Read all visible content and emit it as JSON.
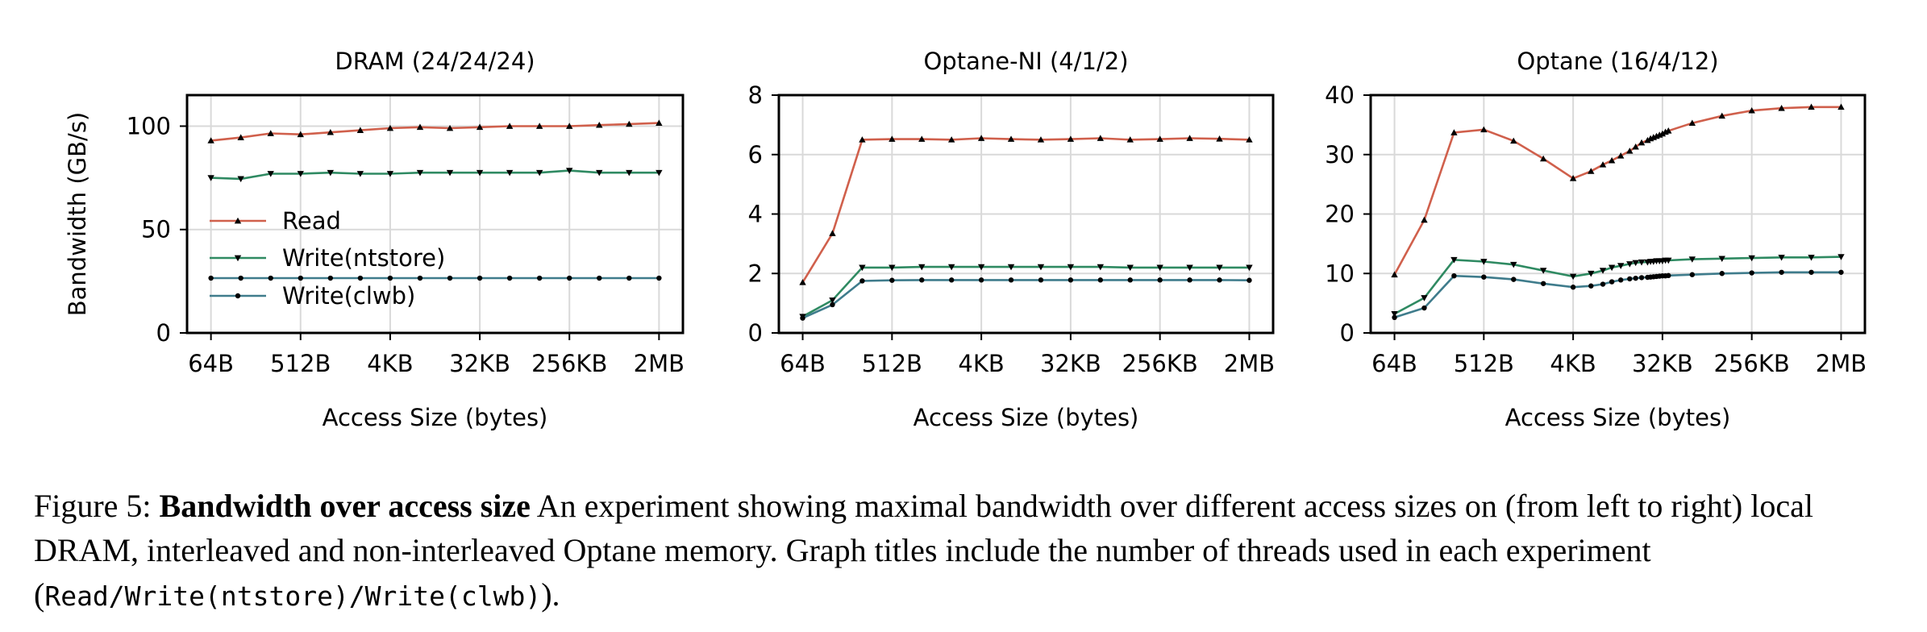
{
  "chart_data": [
    {
      "type": "line",
      "title": "DRAM (24/24/24)",
      "xlabel": "Access Size (bytes)",
      "ylabel": "Bandwidth (GB/s)",
      "ylim": [
        0,
        115
      ],
      "yticks": [
        0,
        50,
        100
      ],
      "x_tick_labels": [
        "64B",
        "512B",
        "4KB",
        "32KB",
        "256KB",
        "2MB"
      ],
      "x_tick_log2": [
        6,
        9,
        12,
        15,
        18,
        21
      ],
      "xlim_log2": [
        5.2,
        21.8
      ],
      "grid": true,
      "legend": {
        "position": "center-left",
        "entries": [
          "Read",
          "Write(ntstore)",
          "Write(clwb)"
        ]
      },
      "series": [
        {
          "name": "Read",
          "color": "#d0604c",
          "marker": "triangle-up",
          "x_log2": [
            6,
            7,
            8,
            9,
            10,
            11,
            12,
            13,
            14,
            15,
            16,
            17,
            18,
            19,
            20,
            21
          ],
          "values": [
            93,
            94.5,
            96.5,
            96,
            97,
            98,
            99,
            99.5,
            99,
            99.5,
            100,
            100,
            100,
            100.5,
            101,
            101.5
          ]
        },
        {
          "name": "Write(ntstore)",
          "color": "#2f8a62",
          "marker": "triangle-down",
          "x_log2": [
            6,
            7,
            8,
            9,
            10,
            11,
            12,
            13,
            14,
            15,
            16,
            17,
            18,
            19,
            20,
            21
          ],
          "values": [
            75,
            74.5,
            77,
            77,
            77.5,
            77,
            77,
            77.5,
            77.5,
            77.5,
            77.5,
            77.5,
            78.5,
            77.5,
            77.5,
            77.5
          ]
        },
        {
          "name": "Write(clwb)",
          "color": "#3f7c8c",
          "marker": "circle",
          "x_log2": [
            6,
            7,
            8,
            9,
            10,
            11,
            12,
            13,
            14,
            15,
            16,
            17,
            18,
            19,
            20,
            21
          ],
          "values": [
            26.5,
            26.5,
            26.5,
            26.5,
            26.5,
            26.5,
            26.5,
            26.5,
            26.5,
            26.5,
            26.5,
            26.5,
            26.5,
            26.5,
            26.5,
            26.5
          ]
        }
      ]
    },
    {
      "type": "line",
      "title": "Optane-NI (4/1/2)",
      "xlabel": "Access Size (bytes)",
      "ylabel": "",
      "ylim": [
        0,
        8
      ],
      "yticks": [
        0,
        2,
        4,
        6,
        8
      ],
      "x_tick_labels": [
        "64B",
        "512B",
        "4KB",
        "32KB",
        "256KB",
        "2MB"
      ],
      "x_tick_log2": [
        6,
        9,
        12,
        15,
        18,
        21
      ],
      "xlim_log2": [
        5.2,
        21.8
      ],
      "grid": true,
      "series": [
        {
          "name": "Read",
          "color": "#d0604c",
          "marker": "triangle-up",
          "x_log2": [
            6,
            7,
            8,
            9,
            10,
            11,
            12,
            13,
            14,
            15,
            16,
            17,
            18,
            19,
            20,
            21
          ],
          "values": [
            1.7,
            3.35,
            6.5,
            6.52,
            6.52,
            6.5,
            6.55,
            6.52,
            6.5,
            6.52,
            6.55,
            6.5,
            6.52,
            6.55,
            6.53,
            6.5
          ]
        },
        {
          "name": "Write(ntstore)",
          "color": "#2f8a62",
          "marker": "triangle-down",
          "x_log2": [
            6,
            7,
            8,
            9,
            10,
            11,
            12,
            13,
            14,
            15,
            16,
            17,
            18,
            19,
            20,
            21
          ],
          "values": [
            0.55,
            1.1,
            2.2,
            2.2,
            2.22,
            2.22,
            2.22,
            2.22,
            2.22,
            2.22,
            2.22,
            2.2,
            2.2,
            2.2,
            2.2,
            2.2
          ]
        },
        {
          "name": "Write(clwb)",
          "color": "#3f7c8c",
          "marker": "circle",
          "x_log2": [
            6,
            7,
            8,
            9,
            10,
            11,
            12,
            13,
            14,
            15,
            16,
            17,
            18,
            19,
            20,
            21
          ],
          "values": [
            0.5,
            0.95,
            1.75,
            1.77,
            1.78,
            1.78,
            1.78,
            1.78,
            1.78,
            1.78,
            1.78,
            1.78,
            1.78,
            1.78,
            1.78,
            1.77
          ]
        }
      ]
    },
    {
      "type": "line",
      "title": "Optane (16/4/12)",
      "xlabel": "Access Size (bytes)",
      "ylabel": "",
      "ylim": [
        0,
        40
      ],
      "yticks": [
        0,
        10,
        20,
        30,
        40
      ],
      "x_tick_labels": [
        "64B",
        "512B",
        "4KB",
        "32KB",
        "256KB",
        "2MB"
      ],
      "x_tick_log2": [
        6,
        9,
        12,
        15,
        18,
        21
      ],
      "xlim_log2": [
        5.2,
        21.8
      ],
      "grid": true,
      "series": [
        {
          "name": "Read",
          "color": "#d0604c",
          "marker": "triangle-up",
          "x_log2": [
            6,
            7,
            8,
            9,
            10,
            11,
            12,
            12.6,
            13,
            13.3,
            13.6,
            13.9,
            14.1,
            14.3,
            14.5,
            14.6,
            14.7,
            14.8,
            14.9,
            15,
            15.1,
            15.2,
            16,
            17,
            18,
            19,
            20,
            21
          ],
          "values": [
            9.8,
            19,
            33.7,
            34.2,
            32.3,
            29.3,
            26,
            27.2,
            28.3,
            29,
            29.8,
            30.6,
            31.3,
            32,
            32.4,
            32.7,
            32.9,
            33.1,
            33.3,
            33.5,
            33.8,
            34,
            35.3,
            36.5,
            37.4,
            37.8,
            38,
            38
          ]
        },
        {
          "name": "Write(ntstore)",
          "color": "#2f8a62",
          "marker": "triangle-down",
          "x_log2": [
            6,
            7,
            8,
            9,
            10,
            11,
            12,
            12.6,
            13,
            13.3,
            13.6,
            13.9,
            14.1,
            14.3,
            14.5,
            14.6,
            14.7,
            14.8,
            14.9,
            15,
            15.1,
            15.2,
            16,
            17,
            18,
            19,
            20,
            21
          ],
          "values": [
            3.2,
            5.9,
            12.3,
            12,
            11.5,
            10.5,
            9.5,
            10,
            10.5,
            11,
            11.3,
            11.6,
            11.8,
            11.9,
            11.9,
            12,
            12,
            12.1,
            12.1,
            12.1,
            12.2,
            12.2,
            12.4,
            12.5,
            12.6,
            12.7,
            12.7,
            12.8
          ]
        },
        {
          "name": "Write(clwb)",
          "color": "#3f7c8c",
          "marker": "circle",
          "x_log2": [
            6,
            7,
            8,
            9,
            10,
            11,
            12,
            12.6,
            13,
            13.3,
            13.6,
            13.9,
            14.1,
            14.3,
            14.5,
            14.6,
            14.7,
            14.8,
            14.9,
            15,
            15.1,
            15.2,
            16,
            17,
            18,
            19,
            20,
            21
          ],
          "values": [
            2.6,
            4.2,
            9.6,
            9.4,
            9,
            8.3,
            7.7,
            7.9,
            8.2,
            8.6,
            8.9,
            9.1,
            9.2,
            9.3,
            9.35,
            9.4,
            9.45,
            9.5,
            9.55,
            9.6,
            9.6,
            9.65,
            9.8,
            10,
            10.1,
            10.2,
            10.2,
            10.2
          ]
        }
      ]
    }
  ],
  "caption": {
    "label": "Figure 5:",
    "bold_title": "Bandwidth over access size",
    "text": "An experiment showing maximal bandwidth over different access sizes on (from left to right) local DRAM, interleaved and non-interleaved Optane memory. Graph titles include the number of threads used in each experiment (",
    "code": "Read/Write(ntstore)/Write(clwb)",
    "end": ")."
  }
}
